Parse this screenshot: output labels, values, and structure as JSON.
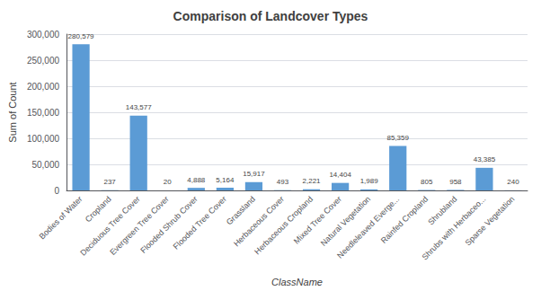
{
  "chart_data": {
    "type": "bar",
    "title": "Comparison of Landcover Types",
    "xlabel": "ClassName",
    "ylabel": "Sum of Count",
    "categories": [
      "Bodies of Water",
      "Cropland",
      "Deciduous Tree Cover",
      "Evergreen Tree Cover",
      "Flooded Shrub Cover",
      "Flooded Tree Cover",
      "Grassland",
      "Herbaceous Cover",
      "Herbaceous Cropland",
      "Mixed Tree Cover",
      "Natural Vegetation",
      "Needleleaved Everge...",
      "Rainfed Cropland",
      "Shrubland",
      "Shrubs with Herbaceo...",
      "Sparse Vegetation"
    ],
    "values": [
      280579,
      237,
      143577,
      20,
      4888,
      5164,
      15917,
      493,
      2221,
      14404,
      1989,
      85359,
      805,
      958,
      43385,
      240
    ],
    "value_labels": [
      "280,579",
      "237",
      "143,577",
      "20",
      "4,888",
      "5,164",
      "15,917",
      "493",
      "2,221",
      "14,404",
      "1,989",
      "85,359",
      "805",
      "958",
      "43,385",
      "240"
    ],
    "data_labels": true,
    "color": "#5B9BD5",
    "ylim": [
      0,
      300000
    ],
    "yticks": [
      0,
      {
        "value": 50000,
        "label": "50,000"
      },
      {
        "value": 100000,
        "label": "100,000"
      },
      {
        "value": 150000,
        "label": "150,000"
      },
      {
        "value": 200000,
        "label": "200,000"
      },
      {
        "value": 250000,
        "label": "250,000"
      },
      {
        "value": 300000,
        "label": "300,000"
      }
    ],
    "grid": true
  }
}
